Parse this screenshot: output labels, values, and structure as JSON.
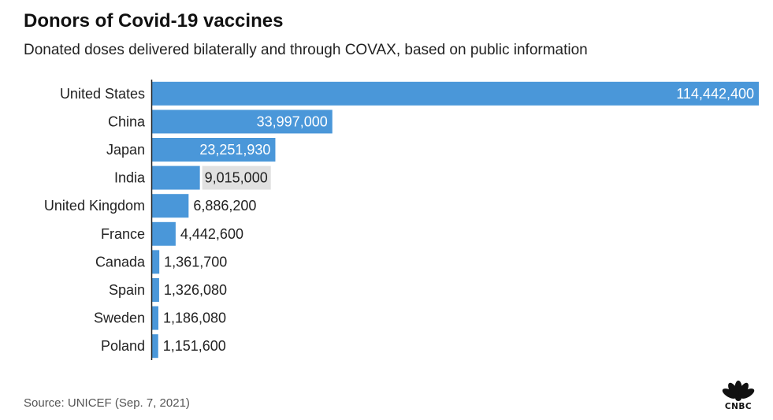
{
  "chart_data": {
    "type": "bar",
    "orientation": "horizontal",
    "title": "Donors of Covid-19 vaccines",
    "subtitle": "Donated doses delivered bilaterally and through COVAX, based on public information",
    "categories": [
      "United States",
      "China",
      "Japan",
      "India",
      "United Kingdom",
      "France",
      "Canada",
      "Spain",
      "Sweden",
      "Poland"
    ],
    "values": [
      114442400,
      33997000,
      23251930,
      9015000,
      6886200,
      4442600,
      1361700,
      1326080,
      1186080,
      1151600
    ],
    "value_labels": [
      "114,442,400",
      "33,997,000",
      "23,251,930",
      "9,015,000",
      "6,886,200",
      "4,442,600",
      "1,361,700",
      "1,326,080",
      "1,186,080",
      "1,151,600"
    ],
    "highlighted_category": "India",
    "xlim": [
      0,
      114442400
    ],
    "xlabel": "",
    "ylabel": "",
    "grid": false,
    "colors": {
      "bar": "#4a97d9",
      "highlight": "#e1e1e1",
      "axis": "#222222"
    },
    "source": "Source: UNICEF (Sep. 7, 2021)"
  },
  "branding": {
    "logo_icon": "peacock-icon",
    "logo_text": "CNBC"
  }
}
